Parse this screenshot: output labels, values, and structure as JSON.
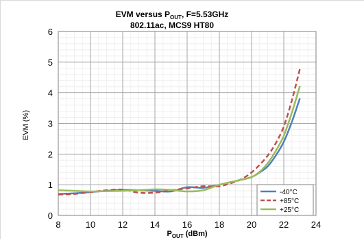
{
  "chart_data": {
    "type": "line",
    "title_line1_main": "EVM versus P",
    "title_line1_sub": "OUT",
    "title_line1_rest": ", F=5.53GHz",
    "title_line2": "802.11ac, MCS9 HT80",
    "xlabel_main": "P",
    "xlabel_sub": "OUT",
    "xlabel_rest": " (dBm)",
    "ylabel": "EVM (%)",
    "xlim": [
      8,
      24
    ],
    "ylim": [
      0,
      6
    ],
    "xticks": [
      8,
      10,
      12,
      14,
      16,
      18,
      20,
      22,
      24
    ],
    "yticks": [
      0,
      1,
      2,
      3,
      4,
      5,
      6
    ],
    "grid": true,
    "legend_position": "bottom-right",
    "series": [
      {
        "name": "-40°C",
        "color": "#4f81bd",
        "dash": "solid",
        "x": [
          8,
          9,
          10,
          11,
          12,
          13,
          14,
          15,
          16,
          17,
          18,
          19,
          19.5,
          20,
          20.5,
          21,
          21.5,
          22,
          22.5,
          23
        ],
        "y": [
          0.7,
          0.72,
          0.76,
          0.8,
          0.83,
          0.82,
          0.8,
          0.78,
          0.92,
          0.9,
          1.0,
          1.12,
          1.18,
          1.25,
          1.4,
          1.6,
          1.95,
          2.4,
          3.05,
          3.82
        ]
      },
      {
        "name": "+85°C",
        "color": "#c0504d",
        "dash": "dashed",
        "x": [
          8,
          9,
          10,
          11,
          12,
          13,
          14,
          15,
          16,
          17,
          18,
          19,
          19.5,
          20,
          20.5,
          21,
          21.5,
          22,
          22.5,
          23
        ],
        "y": [
          0.68,
          0.7,
          0.76,
          0.82,
          0.84,
          0.74,
          0.74,
          0.82,
          0.88,
          0.95,
          0.95,
          1.1,
          1.22,
          1.4,
          1.65,
          1.95,
          2.35,
          2.9,
          3.75,
          4.78
        ]
      },
      {
        "name": "+25°C",
        "color": "#9bbb59",
        "dash": "solid",
        "x": [
          8,
          9,
          10,
          11,
          12,
          13,
          14,
          15,
          16,
          17,
          18,
          19,
          19.5,
          20,
          20.5,
          21,
          21.5,
          22,
          22.5,
          23
        ],
        "y": [
          0.82,
          0.8,
          0.78,
          0.79,
          0.8,
          0.82,
          0.85,
          0.83,
          0.78,
          0.82,
          1.0,
          1.12,
          1.18,
          1.25,
          1.42,
          1.7,
          2.1,
          2.6,
          3.35,
          4.22
        ]
      }
    ]
  }
}
